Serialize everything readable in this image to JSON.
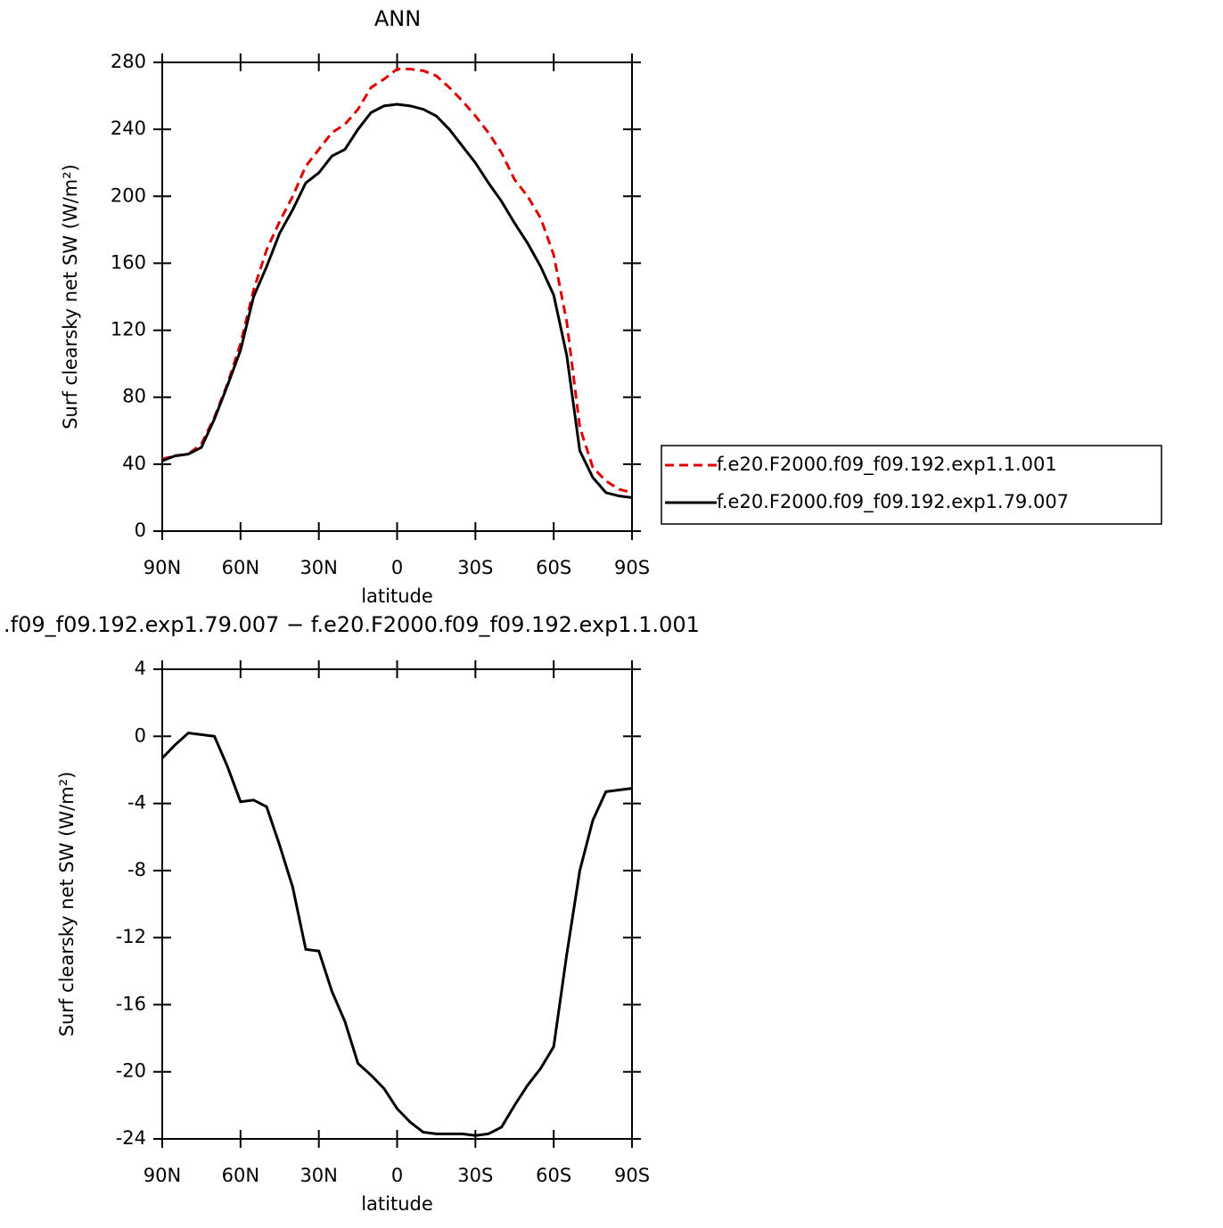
{
  "chart_data": [
    {
      "type": "line",
      "title": "ANN",
      "xlabel": "latitude",
      "ylabel": "Surf clearsky net SW (W/m²)",
      "x": [
        90,
        85,
        80,
        75,
        70,
        65,
        60,
        55,
        50,
        45,
        40,
        35,
        30,
        25,
        20,
        15,
        10,
        5,
        0,
        -5,
        -10,
        -15,
        -20,
        -25,
        -30,
        -35,
        -40,
        -45,
        -50,
        -55,
        -60,
        -65,
        -70,
        -75,
        -80,
        -85,
        -90
      ],
      "series": [
        {
          "name": "f.e20.F2000.f09_f09.192.exp1.1.001",
          "color": "#e00000",
          "line_style": "dashed",
          "values": [
            43,
            45,
            46,
            52,
            68,
            88,
            112,
            144,
            168,
            185,
            200,
            218,
            228,
            238,
            243,
            252,
            265,
            270,
            276,
            276,
            275,
            272,
            265,
            257,
            248,
            238,
            226,
            210,
            200,
            187,
            165,
            125,
            62,
            38,
            30,
            25,
            23
          ]
        },
        {
          "name": "f.e20.F2000.f09_f09.192.exp1.79.007",
          "color": "#000000",
          "line_style": "solid",
          "values": [
            42,
            45,
            46,
            50,
            67,
            87,
            108,
            140,
            158,
            178,
            192,
            208,
            214,
            224,
            228,
            240,
            250,
            254,
            255,
            254,
            252,
            248,
            240,
            230,
            220,
            208,
            197,
            184,
            172,
            158,
            141,
            105,
            48,
            32,
            23,
            21,
            20
          ]
        }
      ],
      "xlim": [
        90,
        -90
      ],
      "xticks": [
        {
          "value": 90,
          "label": "90N"
        },
        {
          "value": 60,
          "label": "60N"
        },
        {
          "value": 30,
          "label": "30N"
        },
        0,
        {
          "value": -30,
          "label": "30S"
        },
        {
          "value": -60,
          "label": "60S"
        },
        {
          "value": -90,
          "label": "90S"
        }
      ],
      "ylim": [
        0,
        280
      ],
      "yticks": [
        0,
        40,
        80,
        120,
        160,
        200,
        240,
        280
      ],
      "legend": "right"
    },
    {
      "type": "line",
      "title": ".f09_f09.192.exp1.79.007 − f.e20.F2000.f09_f09.192.exp1.1.001",
      "xlabel": "latitude",
      "ylabel": "Surf clearsky net SW (W/m²)",
      "x": [
        90,
        85,
        80,
        75,
        70,
        65,
        60,
        55,
        50,
        45,
        40,
        35,
        30,
        25,
        20,
        15,
        10,
        5,
        0,
        -5,
        -10,
        -15,
        -20,
        -25,
        -30,
        -35,
        -40,
        -45,
        -50,
        -55,
        -60,
        -65,
        -70,
        -75,
        -80,
        -85,
        -90
      ],
      "series": [
        {
          "color": "#000000",
          "line_style": "solid",
          "values": [
            -1.3,
            -0.5,
            0.2,
            0.1,
            0.0,
            -1.8,
            -3.9,
            -3.8,
            -4.2,
            -6.5,
            -9,
            -12.7,
            -12.8,
            -15.2,
            -17,
            -19.5,
            -20.2,
            -21,
            -22.2,
            -23,
            -23.6,
            -23.7,
            -23.7,
            -23.7,
            -23.8,
            -23.7,
            -23.3,
            -22,
            -20.8,
            -19.8,
            -18.5,
            -13,
            -8,
            -5,
            -3.3,
            -3.2,
            -3.1
          ]
        }
      ],
      "xlim": [
        90,
        -90
      ],
      "xticks": [
        {
          "value": 90,
          "label": "90N"
        },
        {
          "value": 60,
          "label": "60N"
        },
        {
          "value": 30,
          "label": "30N"
        },
        0,
        {
          "value": -30,
          "label": "30S"
        },
        {
          "value": -60,
          "label": "60S"
        },
        {
          "value": -90,
          "label": "90S"
        }
      ],
      "ylim": [
        -24,
        4
      ],
      "yticks": [
        -24,
        -20,
        -16,
        -12,
        -8,
        -4,
        0,
        4
      ]
    }
  ]
}
